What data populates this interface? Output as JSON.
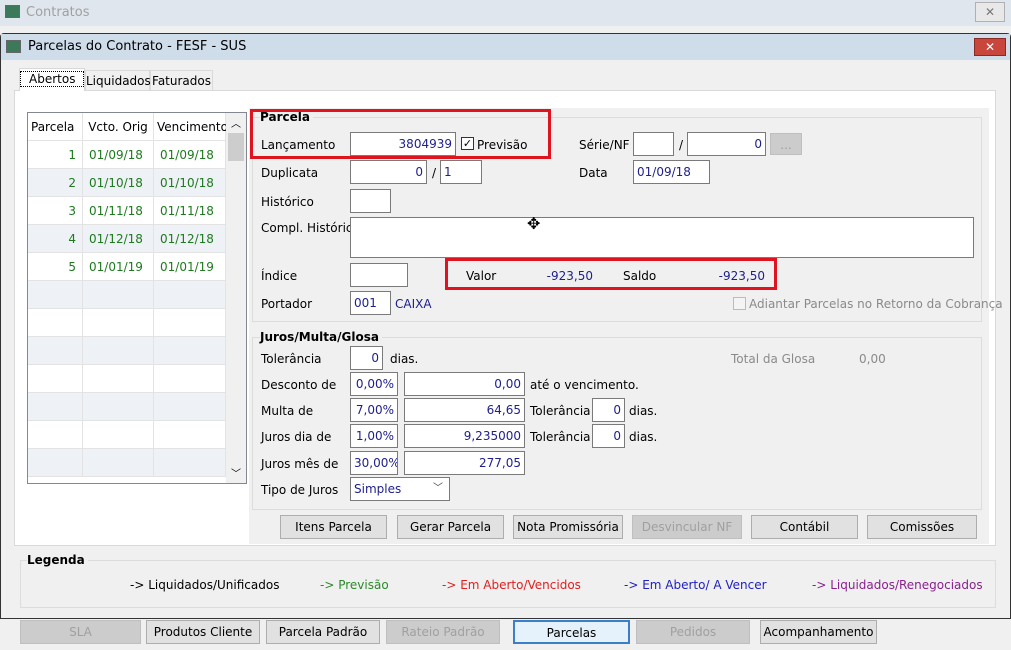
{
  "outer_window": {
    "title": "Contratos",
    "icon": "app-window-icon"
  },
  "window": {
    "title": "Parcelas do Contrato - FESF - SUS",
    "icon": "app-window-icon"
  },
  "tabs": [
    {
      "label": "Abertos",
      "active": true
    },
    {
      "label": "Liquidados"
    },
    {
      "label": "Faturados"
    }
  ],
  "grid": {
    "headers": [
      "Parcela",
      "Vcto. Orig",
      "Vencimento"
    ],
    "row_color": "#1e7a1e",
    "rows": [
      [
        "1",
        "01/09/18",
        "01/09/18"
      ],
      [
        "2",
        "01/10/18",
        "01/10/18"
      ],
      [
        "3",
        "01/11/18",
        "01/11/18"
      ],
      [
        "4",
        "01/12/18",
        "01/12/18"
      ],
      [
        "5",
        "01/01/19",
        "01/01/19"
      ]
    ]
  },
  "parcela": {
    "title": "Parcela",
    "lancamento_label": "Lançamento",
    "lancamento": "3804939",
    "previsao_label": "Previsão",
    "previsao_checked": true,
    "serie_label": "Série/NF",
    "serie": "",
    "slash": "/",
    "nf": "0",
    "lookup_label": "...",
    "duplicata_label": "Duplicata",
    "duplicata": "0",
    "duplicata_total": "1",
    "data_label": "Data",
    "data": "01/09/18",
    "historico_label": "Histórico",
    "historico": "",
    "compl_label": "Compl. Histórico",
    "compl": "",
    "indice_label": "Índice",
    "indice": "",
    "valor_label": "Valor",
    "valor": "-923,50",
    "saldo_label": "Saldo",
    "saldo": "-923,50",
    "portador_label": "Portador",
    "portador_code": "001",
    "portador_name": "CAIXA",
    "adiantar_label": "Adiantar Parcelas no Retorno da Cobrança",
    "adiantar_checked": false
  },
  "juros": {
    "title": "Juros/Multa/Glosa",
    "tolerancia_label": "Tolerância",
    "tolerancia": "0",
    "dias": "dias.",
    "total_glosa_label": "Total da Glosa",
    "total_glosa": "0,00",
    "desconto_label": "Desconto de",
    "desconto_pct": "0,00%",
    "desconto_val": "0,00",
    "ate_label": "até o vencimento.",
    "multa_label": "Multa de",
    "multa_pct": "7,00%",
    "multa_val": "64,65",
    "multa_tol": "0",
    "juros_dia_label": "Juros dia de",
    "juros_dia_pct": "1,00%",
    "juros_dia_val": "9,235000",
    "juros_dia_tol": "0",
    "juros_mes_label": "Juros mês de",
    "juros_mes_pct": "30,00%",
    "juros_mes_val": "277,05",
    "tipo_label": "Tipo de Juros",
    "tipo": "Simples"
  },
  "actions": [
    {
      "label": "Itens Parcela"
    },
    {
      "label": "Gerar Parcela"
    },
    {
      "label": "Nota Promissória"
    },
    {
      "label": "Desvincular NF",
      "disabled": true
    },
    {
      "label": "Contábil"
    },
    {
      "label": "Comissões"
    }
  ],
  "legend": {
    "title": "Legenda",
    "items": [
      {
        "label": "-> Liquidados/Unificados",
        "color": "#000000"
      },
      {
        "label": "-> Previsão",
        "color": "#2a8a2a"
      },
      {
        "label": "-> Em Aberto/Vencidos",
        "color": "#e02020"
      },
      {
        "label": "-> Em Aberto/ A Vencer",
        "color": "#2020c0"
      },
      {
        "label": "-> Liquidados/Renegociados",
        "color": "#8a2090"
      }
    ]
  },
  "bottom_buttons": [
    {
      "label": "SLA",
      "disabled": true
    },
    {
      "label": "Produtos Cliente"
    },
    {
      "label": "Parcela Padrão"
    },
    {
      "label": "Rateio Padrão",
      "disabled": true
    },
    {
      "label": "Parcelas",
      "focused": true
    },
    {
      "label": "Pedidos",
      "disabled": true
    },
    {
      "label": "Acompanhamento"
    }
  ]
}
